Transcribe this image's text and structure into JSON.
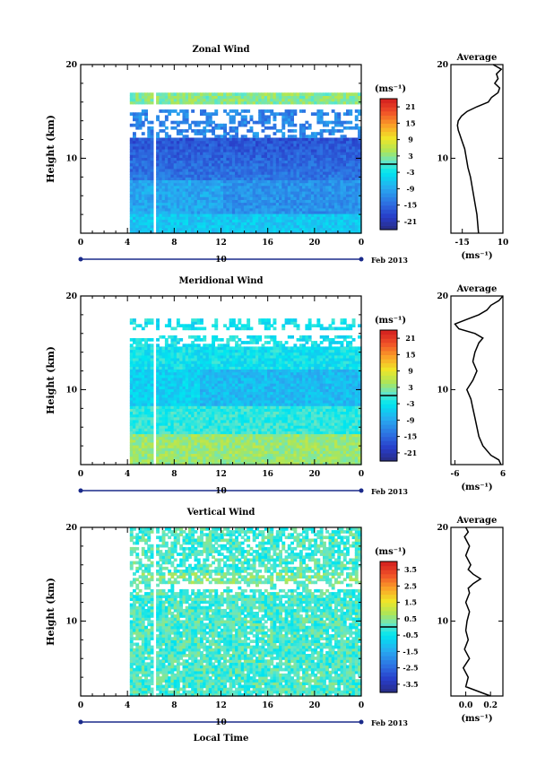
{
  "chart_data": [
    {
      "type": "heatmap",
      "title": "Zonal Wind",
      "ylabel": "Height (km)",
      "yticks": [
        "20",
        "10"
      ],
      "xticks": [
        "0",
        "4",
        "8",
        "12",
        "16",
        "20",
        "0"
      ],
      "xlim": [
        0,
        24
      ],
      "ylim": [
        2,
        20
      ],
      "data_start_hour": 4.2,
      "gap_hour": 6.2,
      "date_label": "10",
      "date_month": "Feb 2013",
      "colorbar": {
        "unit": "(ms⁻¹)",
        "ticks": [
          "21",
          "15",
          "9",
          "3",
          "-3",
          "-9",
          "-15",
          "-21"
        ],
        "range": [
          -24,
          24
        ]
      },
      "profile": {
        "title": "Average",
        "xticks": [
          "-15",
          "10"
        ],
        "xlim": [
          -22,
          10
        ],
        "xlabel": "(ms⁻¹)",
        "yticks": [
          "20",
          "10"
        ],
        "heights": [
          2,
          3,
          4,
          5,
          6,
          7,
          8,
          9,
          10,
          11,
          12,
          12.5,
          13,
          13.5,
          14,
          14.5,
          15,
          15.5,
          16,
          16.5,
          17,
          17.5,
          18,
          18.5,
          19,
          19.5,
          20
        ],
        "values": [
          -5,
          -5.5,
          -6,
          -7,
          -8,
          -9,
          -10,
          -11.5,
          -12.5,
          -13.5,
          -15.5,
          -16.5,
          -17.5,
          -18,
          -17.5,
          -15.5,
          -12,
          -6,
          1,
          3,
          7,
          8,
          5,
          7,
          6,
          9,
          4
        ]
      },
      "field": "zonal"
    },
    {
      "type": "heatmap",
      "title": "Meridional Wind",
      "ylabel": "Height (km)",
      "yticks": [
        "20",
        "10"
      ],
      "xticks": [
        "0",
        "4",
        "8",
        "12",
        "16",
        "20",
        "0"
      ],
      "xlim": [
        0,
        24
      ],
      "ylim": [
        2,
        20
      ],
      "data_start_hour": 4.2,
      "gap_hour": 6.2,
      "date_label": "10",
      "date_month": "Feb 2013",
      "colorbar": {
        "unit": "(ms⁻¹)",
        "ticks": [
          "21",
          "15",
          "9",
          "3",
          "-3",
          "-9",
          "-15",
          "-21"
        ],
        "range": [
          -24,
          24
        ]
      },
      "profile": {
        "title": "Average",
        "xticks": [
          "-6",
          "6"
        ],
        "xlim": [
          -7,
          6
        ],
        "xlabel": "(ms⁻¹)",
        "yticks": [
          "20",
          "10"
        ],
        "heights": [
          2,
          2.5,
          3,
          4,
          5,
          6,
          7,
          8,
          9,
          10,
          11,
          12,
          13,
          14,
          15,
          15.5,
          16,
          16.5,
          17,
          17.5,
          18,
          18.5,
          19,
          19.5,
          20
        ],
        "values": [
          5.5,
          5,
          3,
          1,
          0,
          -0.5,
          -1,
          -1.5,
          -2,
          -3,
          -1.5,
          -0.5,
          -1.5,
          -1,
          0,
          1,
          -1,
          -5,
          -6,
          -3,
          0,
          2,
          3,
          5,
          6
        ]
      },
      "field": "meridional"
    },
    {
      "type": "heatmap",
      "title": "Vertical Wind",
      "ylabel": "Height (km)",
      "xlabel": "Local Time",
      "yticks": [
        "20",
        "10"
      ],
      "xticks": [
        "0",
        "4",
        "8",
        "12",
        "16",
        "20",
        "0"
      ],
      "xlim": [
        0,
        24
      ],
      "ylim": [
        2,
        20
      ],
      "data_start_hour": 4.2,
      "gap_hour": 6.2,
      "date_label": "10",
      "date_month": "Feb 2013",
      "colorbar": {
        "unit": "(ms⁻¹)",
        "ticks": [
          "3.5",
          "2.5",
          "1.5",
          "0.5",
          "-0.5",
          "-1.5",
          "-2.5",
          "-3.5"
        ],
        "range": [
          -4,
          4
        ]
      },
      "profile": {
        "title": "Average",
        "xticks": [
          "0.0",
          "0.2"
        ],
        "xlim": [
          -0.12,
          0.3
        ],
        "xlabel": "(ms⁻¹)",
        "yticks": [
          "20",
          "10"
        ],
        "heights": [
          2,
          3,
          4,
          5,
          6,
          7,
          8,
          9,
          10,
          11,
          12,
          13,
          13.5,
          14,
          14.5,
          15,
          15.5,
          16,
          17,
          18,
          19,
          19.5,
          20
        ],
        "values": [
          0.2,
          0.0,
          0.02,
          -0.02,
          0.03,
          -0.01,
          0.02,
          0.0,
          0.01,
          0.03,
          0.0,
          0.03,
          0.02,
          0.06,
          0.12,
          0.06,
          0.02,
          0.04,
          0.0,
          0.03,
          -0.01,
          0.02,
          0.0
        ]
      },
      "field": "vertical"
    }
  ]
}
